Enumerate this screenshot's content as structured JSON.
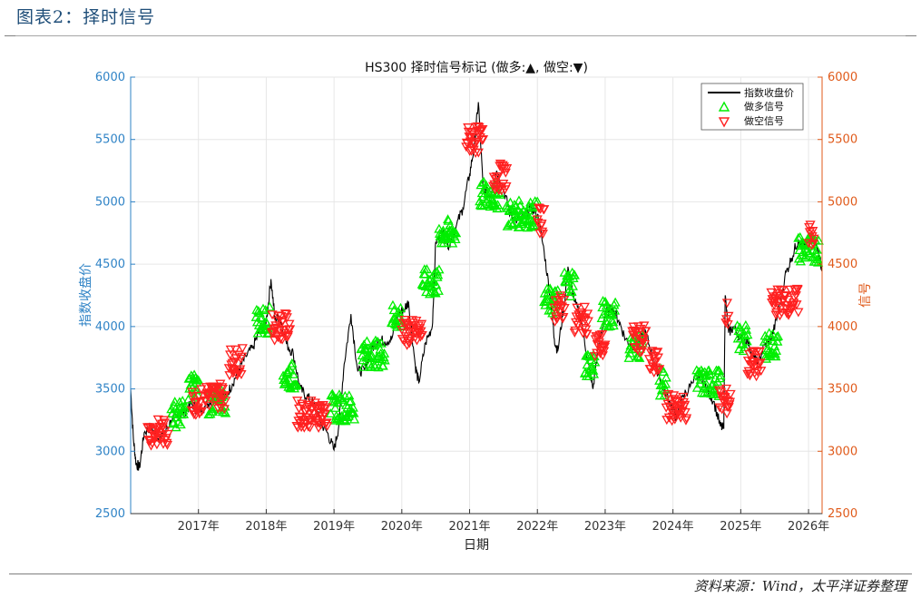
{
  "report": {
    "title": "图表2：择时信号",
    "source": "资料来源：Wind，太平洋证券整理"
  },
  "chart_data": {
    "type": "line",
    "title": "HS300 择时信号标记 (做多:▲, 做空:▼)",
    "xlabel": "日期",
    "ylabel_left": "指数收盘价",
    "ylabel_right": "信号",
    "ylim": [
      2500,
      6000
    ],
    "yticks": [
      2500,
      3000,
      3500,
      4000,
      4500,
      5000,
      5500,
      6000
    ],
    "xlim": [
      2016.0,
      2026.2
    ],
    "xticks": [
      {
        "value": 2017,
        "label": "2017年"
      },
      {
        "value": 2018,
        "label": "2018年"
      },
      {
        "value": 2019,
        "label": "2019年"
      },
      {
        "value": 2020,
        "label": "2020年"
      },
      {
        "value": 2021,
        "label": "2021年"
      },
      {
        "value": 2022,
        "label": "2022年"
      },
      {
        "value": 2023,
        "label": "2023年"
      },
      {
        "value": 2024,
        "label": "2024年"
      },
      {
        "value": 2025,
        "label": "2025年"
      },
      {
        "value": 2026,
        "label": "2026年"
      }
    ],
    "grid": true,
    "legend_position": "top-right",
    "series": [
      {
        "name": "指数收盘价",
        "kind": "line",
        "color": "#000000",
        "points": [
          [
            2016.0,
            3500
          ],
          [
            2016.04,
            3100
          ],
          [
            2016.08,
            2900
          ],
          [
            2016.13,
            2870
          ],
          [
            2016.2,
            3150
          ],
          [
            2016.3,
            3200
          ],
          [
            2016.4,
            3100
          ],
          [
            2016.5,
            3150
          ],
          [
            2016.6,
            3250
          ],
          [
            2016.7,
            3280
          ],
          [
            2016.8,
            3320
          ],
          [
            2016.9,
            3380
          ],
          [
            2017.0,
            3320
          ],
          [
            2017.1,
            3360
          ],
          [
            2017.2,
            3420
          ],
          [
            2017.3,
            3460
          ],
          [
            2017.4,
            3440
          ],
          [
            2017.5,
            3540
          ],
          [
            2017.6,
            3660
          ],
          [
            2017.7,
            3760
          ],
          [
            2017.8,
            3830
          ],
          [
            2017.9,
            3960
          ],
          [
            2018.0,
            4040
          ],
          [
            2018.07,
            4380
          ],
          [
            2018.13,
            4050
          ],
          [
            2018.2,
            4080
          ],
          [
            2018.3,
            3860
          ],
          [
            2018.4,
            3780
          ],
          [
            2018.5,
            3500
          ],
          [
            2018.6,
            3440
          ],
          [
            2018.7,
            3380
          ],
          [
            2018.8,
            3230
          ],
          [
            2018.9,
            3150
          ],
          [
            2019.0,
            3010
          ],
          [
            2019.07,
            3200
          ],
          [
            2019.15,
            3700
          ],
          [
            2019.25,
            4100
          ],
          [
            2019.35,
            3640
          ],
          [
            2019.45,
            3650
          ],
          [
            2019.55,
            3810
          ],
          [
            2019.65,
            3900
          ],
          [
            2019.75,
            3880
          ],
          [
            2019.85,
            3900
          ],
          [
            2019.95,
            4100
          ],
          [
            2020.05,
            4150
          ],
          [
            2020.1,
            4200
          ],
          [
            2020.2,
            3680
          ],
          [
            2020.25,
            3550
          ],
          [
            2020.35,
            3870
          ],
          [
            2020.45,
            4000
          ],
          [
            2020.5,
            4680
          ],
          [
            2020.6,
            4750
          ],
          [
            2020.7,
            4650
          ],
          [
            2020.8,
            4800
          ],
          [
            2020.9,
            4950
          ],
          [
            2021.0,
            5220
          ],
          [
            2021.07,
            5450
          ],
          [
            2021.13,
            5800
          ],
          [
            2021.2,
            5100
          ],
          [
            2021.3,
            5050
          ],
          [
            2021.4,
            5250
          ],
          [
            2021.5,
            5100
          ],
          [
            2021.6,
            4900
          ],
          [
            2021.7,
            4850
          ],
          [
            2021.8,
            4880
          ],
          [
            2021.9,
            4950
          ],
          [
            2022.0,
            4900
          ],
          [
            2022.1,
            4600
          ],
          [
            2022.2,
            4200
          ],
          [
            2022.25,
            3900
          ],
          [
            2022.3,
            3800
          ],
          [
            2022.4,
            4200
          ],
          [
            2022.45,
            4480
          ],
          [
            2022.55,
            4200
          ],
          [
            2022.65,
            4050
          ],
          [
            2022.75,
            3700
          ],
          [
            2022.82,
            3500
          ],
          [
            2022.9,
            3850
          ],
          [
            2023.0,
            4100
          ],
          [
            2023.1,
            4150
          ],
          [
            2023.2,
            4050
          ],
          [
            2023.3,
            3900
          ],
          [
            2023.4,
            3850
          ],
          [
            2023.5,
            3880
          ],
          [
            2023.6,
            3950
          ],
          [
            2023.7,
            3750
          ],
          [
            2023.8,
            3600
          ],
          [
            2023.9,
            3450
          ],
          [
            2024.0,
            3350
          ],
          [
            2024.05,
            3250
          ],
          [
            2024.15,
            3450
          ],
          [
            2024.3,
            3550
          ],
          [
            2024.4,
            3620
          ],
          [
            2024.5,
            3500
          ],
          [
            2024.6,
            3400
          ],
          [
            2024.7,
            3200
          ],
          [
            2024.75,
            3180
          ],
          [
            2024.77,
            4250
          ],
          [
            2024.82,
            3950
          ],
          [
            2024.9,
            4000
          ],
          [
            2025.0,
            3900
          ],
          [
            2025.1,
            3880
          ],
          [
            2025.2,
            3750
          ],
          [
            2025.25,
            3700
          ],
          [
            2025.35,
            3850
          ],
          [
            2025.45,
            3900
          ],
          [
            2025.55,
            4100
          ],
          [
            2025.65,
            4400
          ],
          [
            2025.75,
            4550
          ],
          [
            2025.85,
            4700
          ],
          [
            2025.95,
            4650
          ],
          [
            2026.05,
            4700
          ],
          [
            2026.15,
            4600
          ],
          [
            2026.2,
            4450
          ]
        ]
      },
      {
        "name": "做多信号",
        "kind": "marker",
        "marker": "triangle-up",
        "color": "#00ee00",
        "clusters": [
          [
            2016.6,
            2016.8,
            3300
          ],
          [
            2016.85,
            2017.0,
            3520
          ],
          [
            2017.15,
            2017.4,
            3400
          ],
          [
            2017.85,
            2018.05,
            4050
          ],
          [
            2018.25,
            2018.45,
            3600
          ],
          [
            2018.95,
            2019.3,
            3350
          ],
          [
            2019.4,
            2019.75,
            3780
          ],
          [
            2019.85,
            2020.0,
            4080
          ],
          [
            2020.3,
            2020.55,
            4350
          ],
          [
            2020.55,
            2020.8,
            4750
          ],
          [
            2021.15,
            2021.45,
            5050
          ],
          [
            2021.55,
            2022.0,
            4900
          ],
          [
            2022.1,
            2022.3,
            4200
          ],
          [
            2022.4,
            2022.55,
            4350
          ],
          [
            2022.7,
            2022.85,
            3700
          ],
          [
            2022.95,
            2023.15,
            4100
          ],
          [
            2023.35,
            2023.55,
            3850
          ],
          [
            2023.8,
            2023.9,
            3550
          ],
          [
            2024.35,
            2024.7,
            3550
          ],
          [
            2024.95,
            2025.1,
            3900
          ],
          [
            2025.35,
            2025.55,
            3850
          ],
          [
            2025.85,
            2026.15,
            4620
          ]
        ]
      },
      {
        "name": "做空信号",
        "kind": "marker",
        "marker": "triangle-down",
        "color": "#ff2020",
        "clusters": [
          [
            2016.25,
            2016.55,
            3150
          ],
          [
            2016.9,
            2017.05,
            3400
          ],
          [
            2017.1,
            2017.4,
            3450
          ],
          [
            2017.45,
            2017.65,
            3720
          ],
          [
            2018.08,
            2018.35,
            4000
          ],
          [
            2018.45,
            2018.9,
            3300
          ],
          [
            2020.0,
            2020.3,
            3950
          ],
          [
            2020.95,
            2021.2,
            5500
          ],
          [
            2021.35,
            2021.55,
            5200
          ],
          [
            2022.0,
            2022.1,
            4850
          ],
          [
            2022.25,
            2022.4,
            4150
          ],
          [
            2022.55,
            2022.75,
            4050
          ],
          [
            2022.85,
            2023.0,
            3850
          ],
          [
            2023.4,
            2023.6,
            3900
          ],
          [
            2023.65,
            2023.8,
            3700
          ],
          [
            2023.9,
            2024.2,
            3350
          ],
          [
            2024.68,
            2024.85,
            3400
          ],
          [
            2024.78,
            2024.82,
            4100
          ],
          [
            2025.1,
            2025.3,
            3700
          ],
          [
            2025.45,
            2025.85,
            4200
          ],
          [
            2026.0,
            2026.08,
            4750
          ]
        ]
      }
    ]
  }
}
